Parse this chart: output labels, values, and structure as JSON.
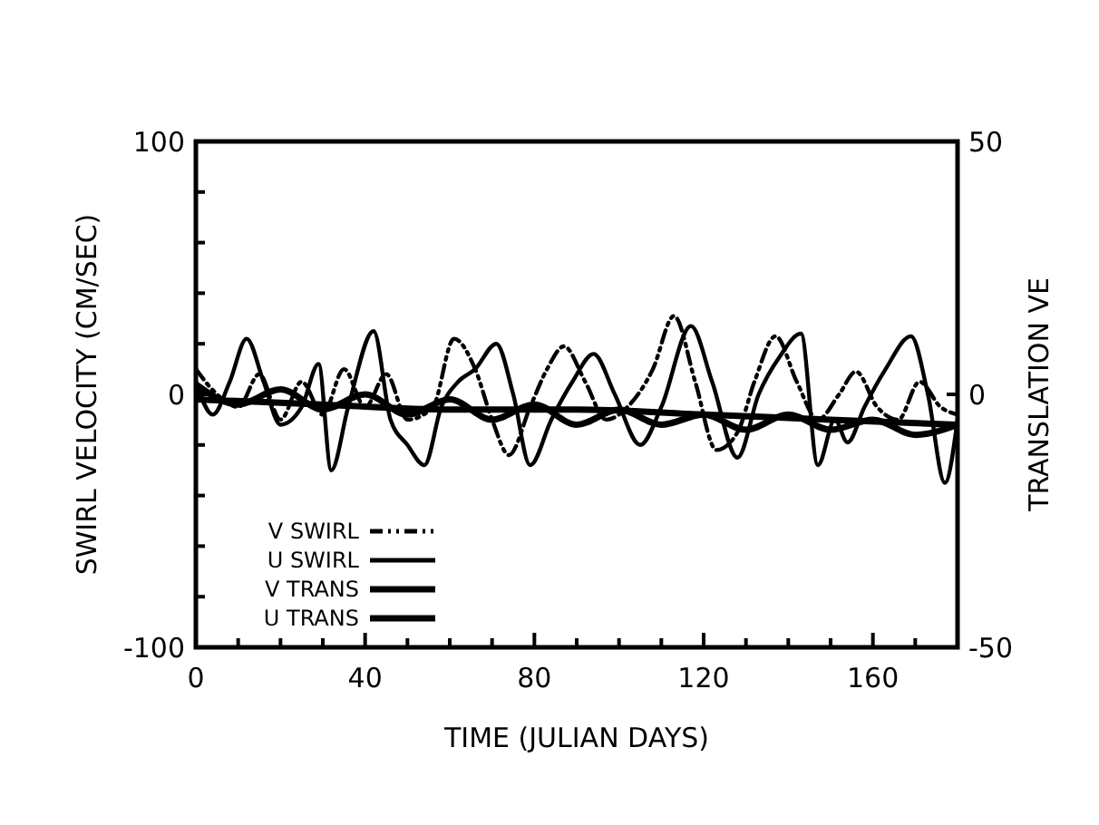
{
  "chart_data": {
    "type": "line",
    "xlabel": "TIME (JULIAN DAYS)",
    "ylabel": "SWIRL VELOCITY (CM/SEC)",
    "y2label": "TRANSLATION VE",
    "xlim": [
      0,
      180
    ],
    "xticks": [
      0,
      {
        "value": 10,
        "label": null
      },
      {
        "value": 20,
        "label": null
      },
      {
        "value": 30,
        "label": null
      },
      40,
      {
        "value": 50,
        "label": null
      },
      {
        "value": 60,
        "label": null
      },
      {
        "value": 70,
        "label": null
      },
      80,
      {
        "value": 90,
        "label": null
      },
      {
        "value": 100,
        "label": null
      },
      {
        "value": 110,
        "label": null
      },
      120,
      {
        "value": 130,
        "label": null
      },
      {
        "value": 140,
        "label": null
      },
      {
        "value": 150,
        "label": null
      },
      160,
      {
        "value": 170,
        "label": null
      }
    ],
    "ylim": [
      -100,
      100
    ],
    "yticks": [
      -100,
      {
        "value": -80,
        "label": null
      },
      {
        "value": -60,
        "label": null
      },
      {
        "value": -40,
        "label": null
      },
      {
        "value": -20,
        "label": null
      },
      0,
      {
        "value": 20,
        "label": null
      },
      {
        "value": 40,
        "label": null
      },
      {
        "value": 60,
        "label": null
      },
      {
        "value": 80,
        "label": null
      },
      100
    ],
    "y2lim": [
      -50,
      50
    ],
    "y2ticks": [
      -50,
      0,
      50
    ],
    "legend": "bottom left",
    "grid": false,
    "series": [
      {
        "name": "V SWIRL",
        "color": "#000000",
        "line_style": "dashed",
        "x": [
          0,
          5,
          10,
          15,
          20,
          25,
          30,
          35,
          40,
          45,
          50,
          56,
          61,
          66,
          70,
          74,
          79,
          83,
          87,
          92,
          97,
          102,
          108,
          113,
          118,
          123,
          128,
          132,
          137,
          142,
          147,
          152,
          156,
          161,
          166,
          171,
          176,
          180
        ],
        "values": [
          10,
          0,
          -5,
          8,
          -10,
          5,
          -8,
          10,
          -5,
          8,
          -10,
          -5,
          22,
          10,
          -10,
          -24,
          -5,
          10,
          19,
          5,
          -10,
          -5,
          10,
          31,
          5,
          -22,
          -15,
          5,
          23,
          5,
          -10,
          0,
          9,
          -5,
          -10,
          5,
          -5,
          -8
        ]
      },
      {
        "name": "U SWIRL",
        "color": "#000000",
        "line_style": "solid",
        "x": [
          0,
          4,
          8,
          12,
          16,
          20,
          25,
          29,
          32,
          36,
          42,
          46,
          50,
          54,
          58,
          62,
          66,
          71,
          75,
          79,
          84,
          89,
          94,
          99,
          105,
          110,
          117,
          122,
          128,
          133,
          138,
          143,
          147,
          151,
          154,
          158,
          163,
          169,
          173,
          177,
          180
        ],
        "values": [
          5,
          -8,
          5,
          22,
          5,
          -12,
          -5,
          12,
          -30,
          -5,
          25,
          -10,
          -20,
          -28,
          -5,
          5,
          10,
          20,
          0,
          -28,
          -10,
          5,
          16,
          0,
          -20,
          -5,
          27,
          5,
          -25,
          0,
          15,
          24,
          -28,
          -10,
          -19,
          -5,
          10,
          23,
          0,
          -35,
          -10
        ]
      },
      {
        "name": "V TRANS",
        "color": "#000000",
        "line_style": "solid",
        "axis": "y2",
        "x": [
          0,
          10,
          20,
          30,
          40,
          50,
          60,
          70,
          80,
          90,
          100,
          110,
          120,
          130,
          140,
          150,
          160,
          170,
          180
        ],
        "values": [
          2,
          -2,
          1,
          -3,
          0,
          -4,
          -1,
          -5,
          -2,
          -6,
          -3,
          -6,
          -4,
          -7,
          -4,
          -7,
          -5,
          -8,
          -6
        ]
      },
      {
        "name": "U TRANS",
        "color": "#000000",
        "line_style": "solid",
        "axis": "y2",
        "x": [
          0,
          30,
          60,
          90,
          120,
          150,
          180
        ],
        "values": [
          -1,
          -2,
          -3,
          -3,
          -4,
          -5,
          -6
        ]
      }
    ]
  }
}
